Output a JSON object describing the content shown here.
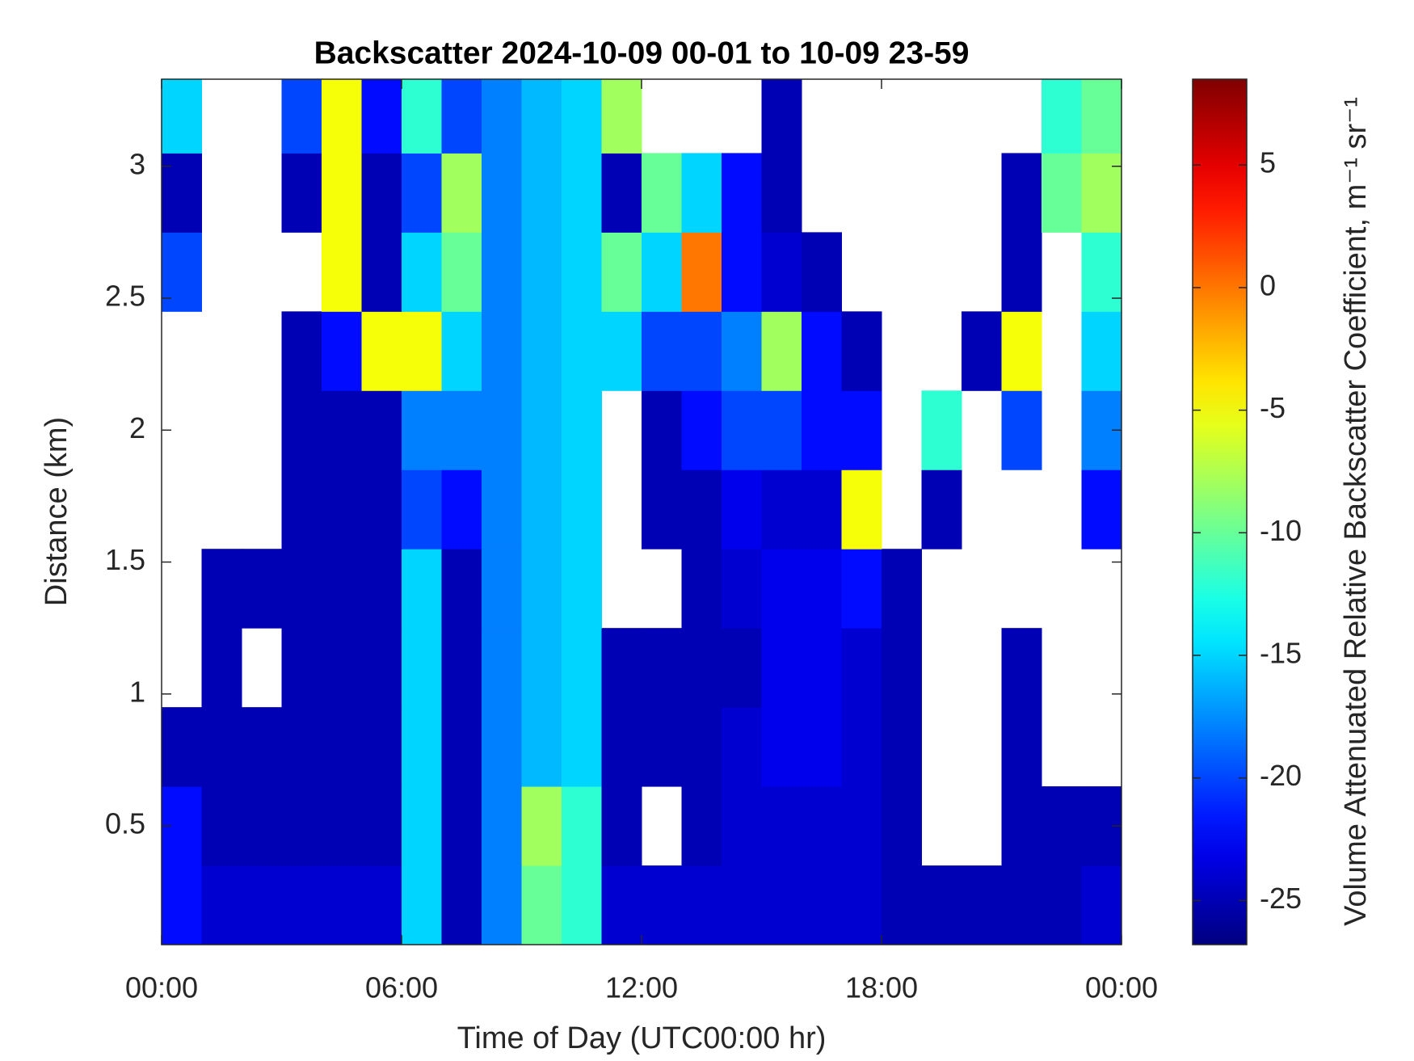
{
  "chart_data": {
    "type": "heatmap",
    "title": "Backscatter 2024-10-09 00-01 to 10-09 23-59",
    "x_label": "Time of Day (UTC00:00 hr)",
    "y_label": "Distance (km)",
    "colorbar_label": "Volume Attenuated Relative Backscatter Coefficient, m⁻¹ sr⁻¹",
    "colormap": "jet",
    "x_bins": [
      0,
      1,
      2,
      3,
      4,
      5,
      6,
      7,
      8,
      9,
      10,
      11,
      12,
      13,
      14,
      15,
      16,
      17,
      18,
      19,
      20,
      21,
      22,
      23,
      24
    ],
    "y_bins": [
      0.05,
      0.35,
      0.65,
      0.95,
      1.25,
      1.55,
      1.85,
      2.15,
      2.45,
      2.75,
      3.05,
      3.33
    ],
    "values": [
      [
        -22,
        -24,
        -24,
        -24,
        -24,
        -24,
        -15,
        -25,
        -18,
        -10,
        -12,
        -24,
        -24,
        -24,
        -24,
        -24,
        -24,
        -24,
        -25,
        -25,
        -25,
        -25,
        -25,
        -24
      ],
      [
        -22,
        -25,
        -25,
        -25,
        -25,
        -25,
        -15,
        -25,
        -18,
        -8,
        -12,
        -25,
        null,
        -25,
        -24,
        -24,
        -24,
        -24,
        -25,
        null,
        null,
        -25,
        -25,
        -25
      ],
      [
        -25,
        -25,
        -25,
        -25,
        -25,
        -25,
        -15,
        -25,
        -18,
        -16,
        -15,
        -25,
        -25,
        -25,
        -24,
        -23,
        -23,
        -24,
        -25,
        null,
        null,
        -25,
        null,
        null
      ],
      [
        null,
        -25,
        null,
        -25,
        -25,
        -25,
        -15,
        -25,
        -18,
        -16,
        -15,
        -25,
        -25,
        -25,
        -25,
        -23,
        -23,
        -24,
        -25,
        null,
        null,
        -25,
        null,
        null
      ],
      [
        null,
        -25,
        -25,
        -25,
        -25,
        -25,
        -15,
        -25,
        -18,
        -16,
        -15,
        null,
        null,
        -25,
        -24,
        -23,
        -23,
        -22,
        -25,
        null,
        null,
        null,
        null,
        null
      ],
      [
        null,
        null,
        null,
        -25,
        -25,
        -25,
        -20,
        -22,
        -18,
        -16,
        -15,
        null,
        -25,
        -25,
        -23,
        -24,
        -24,
        -5,
        null,
        -25,
        null,
        null,
        null,
        -22
      ],
      [
        null,
        null,
        null,
        -25,
        -25,
        -25,
        -18,
        -18,
        -18,
        -16,
        -15,
        null,
        -25,
        -22,
        -20,
        -20,
        -22,
        -22,
        null,
        -12,
        null,
        -20,
        null,
        -18
      ],
      [
        null,
        null,
        null,
        -25,
        -22,
        -5,
        -5,
        -15,
        -18,
        -16,
        -15,
        -15,
        -20,
        -20,
        -18,
        -8,
        -22,
        -25,
        null,
        null,
        -25,
        -5,
        null,
        -15
      ],
      [
        -20,
        null,
        null,
        null,
        -5,
        -25,
        -15,
        -10,
        -18,
        -16,
        -15,
        -10,
        -15,
        0,
        -22,
        -24,
        -25,
        null,
        null,
        null,
        null,
        -25,
        null,
        -12
      ],
      [
        -25,
        null,
        null,
        -25,
        -5,
        -25,
        -20,
        -8,
        -18,
        -16,
        -15,
        -25,
        -10,
        -15,
        -22,
        -25,
        null,
        null,
        null,
        null,
        null,
        -25,
        -10,
        -8
      ],
      [
        -15,
        null,
        null,
        -20,
        -5,
        -22,
        -12,
        -20,
        -18,
        -16,
        -15,
        -8,
        null,
        null,
        null,
        -25,
        null,
        null,
        null,
        null,
        null,
        null,
        -12,
        -10
      ]
    ],
    "xlim": [
      0,
      24
    ],
    "xticks": [
      {
        "value": 0,
        "label": "00:00"
      },
      {
        "value": 6,
        "label": "06:00"
      },
      {
        "value": 12,
        "label": "12:00"
      },
      {
        "value": 18,
        "label": "18:00"
      },
      {
        "value": 24,
        "label": "00:00"
      }
    ],
    "ylim": [
      0.05,
      3.33
    ],
    "yticks": [
      0.5,
      1,
      1.5,
      2,
      2.5,
      3
    ],
    "clim": [
      -26.8,
      8.5
    ],
    "cticks": [
      -25,
      -20,
      -15,
      -10,
      -5,
      0,
      5
    ]
  }
}
